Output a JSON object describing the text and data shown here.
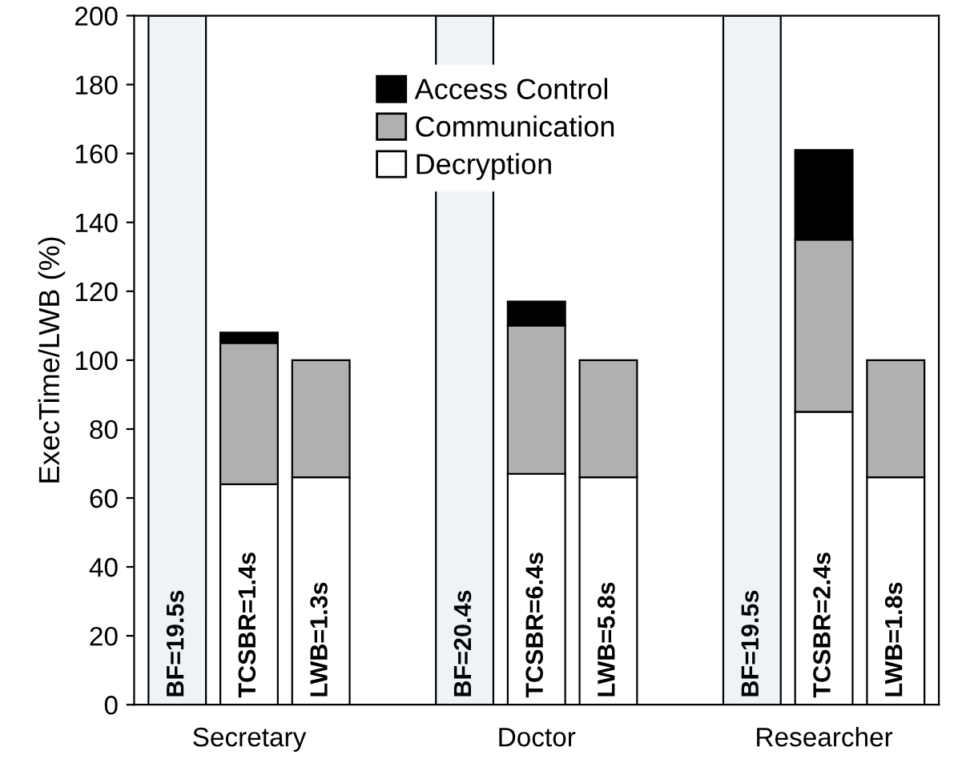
{
  "chart_data": {
    "type": "bar",
    "stacked": true,
    "ylabel": "ExecTime/LWB (%)",
    "categories": [
      null,
      "Secretary",
      null,
      null,
      null,
      "Doctor",
      null,
      null,
      null,
      "Researcher",
      null
    ],
    "series": [
      {
        "color": "#eef3f7",
        "values": [
          200,
          null,
          null,
          null,
          200,
          null,
          null,
          null,
          200,
          null,
          null
        ]
      },
      {
        "name": "Decryption",
        "color": "#ffffff",
        "values": [
          null,
          64,
          66,
          null,
          null,
          67,
          66,
          null,
          null,
          85,
          66
        ]
      },
      {
        "name": "Communication",
        "color": "#b0b0b0",
        "values": [
          null,
          41,
          34,
          null,
          null,
          43,
          34,
          null,
          null,
          50,
          34
        ]
      },
      {
        "name": "Access Control",
        "color": "#000000",
        "values": [
          null,
          3,
          null,
          null,
          null,
          7,
          null,
          null,
          null,
          26,
          null
        ]
      }
    ],
    "annotations": [
      "BF=19.5s",
      "TCSBR=1.4s",
      "LWB=1.3s",
      "BF=20.4s",
      "TCSBR=6.4s",
      "LWB=5.8s",
      "BF=19.5s",
      "TCSBR=2.4s",
      "LWB=1.8s"
    ],
    "ylim": [
      0,
      200
    ],
    "yticks": [
      0,
      20,
      40,
      60,
      80,
      100,
      120,
      140,
      160,
      180,
      200
    ],
    "grid": false,
    "legend": "top"
  }
}
